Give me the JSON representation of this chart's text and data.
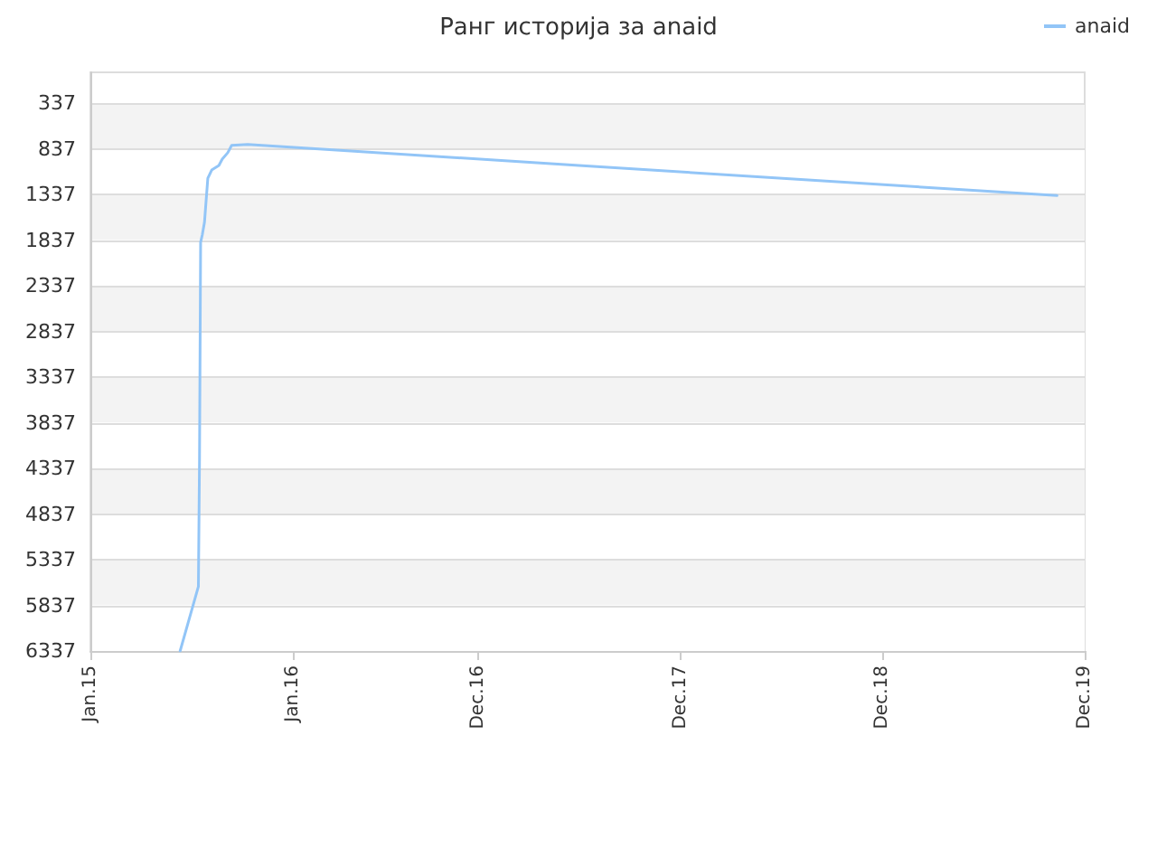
{
  "chart_data": {
    "type": "line",
    "title": "Ранг историја за anaid",
    "x": [
      "2015-06-12",
      "2015-07-15",
      "2015-07-17",
      "2015-07-19",
      "2015-07-22",
      "2015-07-26",
      "2015-08-01",
      "2015-08-08",
      "2015-08-21",
      "2015-08-27",
      "2015-09-06",
      "2015-09-13",
      "2015-10-12",
      "2017-06-01",
      "2019-10-12"
    ],
    "series": [
      {
        "name": "anaid",
        "color": "#92c5f7",
        "values": [
          6337,
          5630,
          4240,
          1860,
          1780,
          1640,
          1160,
          1070,
          1020,
          950,
          880,
          800,
          790,
          1020,
          1350
        ]
      }
    ],
    "xlim": [
      "2015-01-01",
      "2019-12-01"
    ],
    "xticks": [
      {
        "value": "2015-01-01",
        "label": "Jan.15"
      },
      {
        "value": "2016-01-01",
        "label": "Jan.16"
      },
      {
        "value": "2016-12-01",
        "label": "Dec.16"
      },
      {
        "value": "2017-12-01",
        "label": "Dec.17"
      },
      {
        "value": "2018-12-01",
        "label": "Dec.18"
      },
      {
        "value": "2019-12-01",
        "label": "Dec.19"
      }
    ],
    "ylim": [
      6337,
      0
    ],
    "yticks": [
      337,
      837,
      1337,
      1837,
      2337,
      2837,
      3337,
      3837,
      4337,
      4837,
      5337,
      5837,
      6337
    ],
    "grid": "y",
    "legend": "top right",
    "marker": "none",
    "line_style": "solid"
  }
}
